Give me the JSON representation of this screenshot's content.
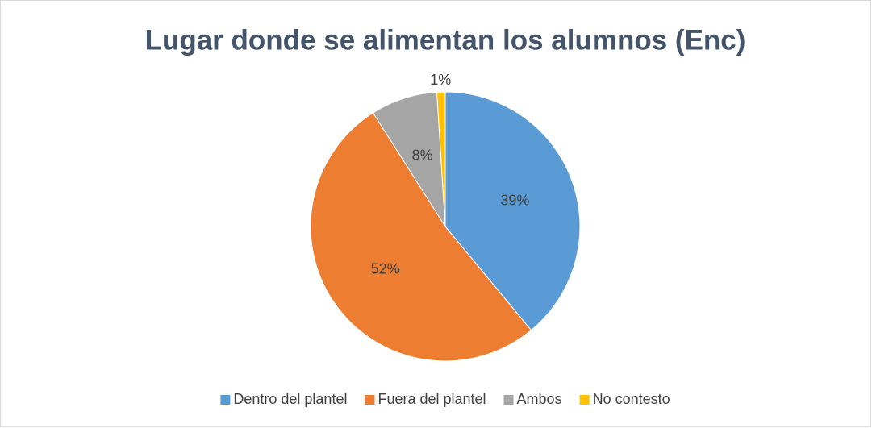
{
  "chart_data": {
    "type": "pie",
    "title": "Lugar donde se alimentan los alumnos (Enc)",
    "categories": [
      "Dentro del plantel",
      "Fuera del plantel",
      "Ambos",
      "No contesto"
    ],
    "values": [
      39,
      52,
      8,
      1
    ],
    "value_labels": [
      "39%",
      "52%",
      "8%",
      "1%"
    ],
    "colors": [
      "#5b9bd5",
      "#ed7d31",
      "#a5a5a5",
      "#ffc000"
    ],
    "legend": "bottom"
  }
}
